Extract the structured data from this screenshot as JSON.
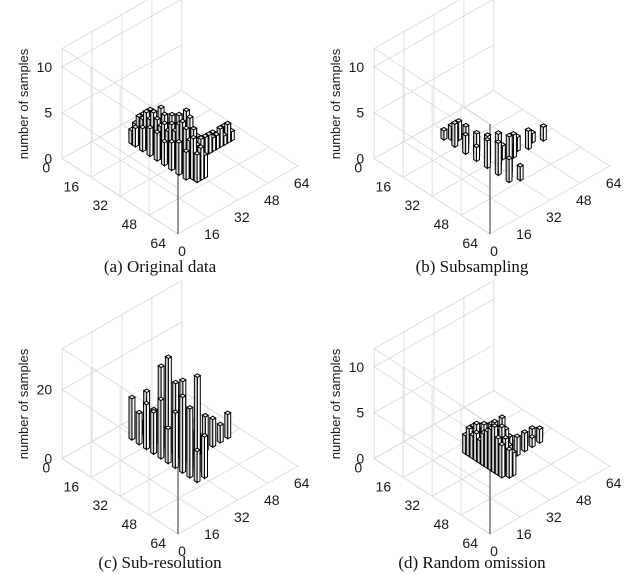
{
  "figure": {
    "style": {
      "bar_front": "#ffffff",
      "bar_side": "#d0d0d0",
      "bar_top": "#f2f2f2",
      "edge": "#000000",
      "grid": "#d9d9d9"
    }
  },
  "chart_data": [
    {
      "type": "bar3d",
      "caption": "(a) Original data",
      "zlabel": "number of samples",
      "zlim": [
        0,
        12
      ],
      "zticks": [
        0,
        5,
        10
      ],
      "x_ticks": [
        0,
        16,
        32,
        48,
        64
      ],
      "y_ticks": [
        0,
        16,
        32,
        48,
        64
      ],
      "grid": true,
      "bars": [
        {
          "x": 28,
          "y": 8,
          "v": 0.5
        },
        {
          "x": 30,
          "y": 8,
          "v": 1.0
        },
        {
          "x": 32,
          "y": 8,
          "v": 1.5
        },
        {
          "x": 26,
          "y": 10,
          "v": 1.5
        },
        {
          "x": 28,
          "y": 10,
          "v": 2.0
        },
        {
          "x": 30,
          "y": 10,
          "v": 1.5
        },
        {
          "x": 32,
          "y": 10,
          "v": 2.5
        },
        {
          "x": 26,
          "y": 12,
          "v": 2.0
        },
        {
          "x": 28,
          "y": 12,
          "v": 3.0
        },
        {
          "x": 30,
          "y": 12,
          "v": 2.5
        },
        {
          "x": 32,
          "y": 12,
          "v": 2.0
        },
        {
          "x": 28,
          "y": 14,
          "v": 3.0
        },
        {
          "x": 30,
          "y": 14,
          "v": 2.0
        },
        {
          "x": 32,
          "y": 14,
          "v": 3.5
        },
        {
          "x": 26,
          "y": 16,
          "v": 2.5
        },
        {
          "x": 28,
          "y": 16,
          "v": 4.0
        },
        {
          "x": 30,
          "y": 16,
          "v": 3.0
        },
        {
          "x": 32,
          "y": 16,
          "v": 2.5
        },
        {
          "x": 28,
          "y": 18,
          "v": 3.5
        },
        {
          "x": 30,
          "y": 18,
          "v": 4.0
        },
        {
          "x": 32,
          "y": 18,
          "v": 2.5
        },
        {
          "x": 26,
          "y": 20,
          "v": 3.0
        },
        {
          "x": 28,
          "y": 20,
          "v": 4.5
        },
        {
          "x": 30,
          "y": 20,
          "v": 3.5
        },
        {
          "x": 32,
          "y": 20,
          "v": 2.0
        },
        {
          "x": 28,
          "y": 22,
          "v": 4.0
        },
        {
          "x": 30,
          "y": 22,
          "v": 5.0
        },
        {
          "x": 32,
          "y": 22,
          "v": 3.5
        },
        {
          "x": 26,
          "y": 24,
          "v": 3.0
        },
        {
          "x": 28,
          "y": 24,
          "v": 3.5
        },
        {
          "x": 30,
          "y": 24,
          "v": 4.5
        },
        {
          "x": 32,
          "y": 24,
          "v": 3.0
        },
        {
          "x": 28,
          "y": 26,
          "v": 4.0
        },
        {
          "x": 30,
          "y": 26,
          "v": 3.0
        },
        {
          "x": 32,
          "y": 26,
          "v": 4.5
        },
        {
          "x": 26,
          "y": 28,
          "v": 2.5
        },
        {
          "x": 28,
          "y": 28,
          "v": 3.5
        },
        {
          "x": 30,
          "y": 28,
          "v": 4.0
        },
        {
          "x": 32,
          "y": 28,
          "v": 3.0
        },
        {
          "x": 28,
          "y": 30,
          "v": 4.5
        },
        {
          "x": 30,
          "y": 30,
          "v": 3.5
        },
        {
          "x": 32,
          "y": 30,
          "v": 5.0
        },
        {
          "x": 26,
          "y": 32,
          "v": 3.0
        },
        {
          "x": 28,
          "y": 32,
          "v": 4.0
        },
        {
          "x": 30,
          "y": 32,
          "v": 5.5
        },
        {
          "x": 32,
          "y": 32,
          "v": 4.0
        },
        {
          "x": 28,
          "y": 34,
          "v": 5.0
        },
        {
          "x": 30,
          "y": 34,
          "v": 4.0
        },
        {
          "x": 32,
          "y": 34,
          "v": 6.0
        },
        {
          "x": 26,
          "y": 36,
          "v": 3.5
        },
        {
          "x": 28,
          "y": 36,
          "v": 5.5
        },
        {
          "x": 30,
          "y": 36,
          "v": 4.5
        },
        {
          "x": 32,
          "y": 36,
          "v": 5.0
        },
        {
          "x": 28,
          "y": 38,
          "v": 5.0
        },
        {
          "x": 30,
          "y": 38,
          "v": 6.0
        },
        {
          "x": 32,
          "y": 38,
          "v": 4.5
        },
        {
          "x": 26,
          "y": 40,
          "v": 3.0
        },
        {
          "x": 28,
          "y": 40,
          "v": 4.0
        },
        {
          "x": 30,
          "y": 40,
          "v": 5.0
        },
        {
          "x": 32,
          "y": 40,
          "v": 3.5
        },
        {
          "x": 28,
          "y": 42,
          "v": 4.5
        },
        {
          "x": 30,
          "y": 42,
          "v": 3.5
        },
        {
          "x": 32,
          "y": 42,
          "v": 4.0
        },
        {
          "x": 28,
          "y": 44,
          "v": 3.0
        },
        {
          "x": 30,
          "y": 44,
          "v": 3.5
        },
        {
          "x": 32,
          "y": 44,
          "v": 2.5
        },
        {
          "x": 34,
          "y": 32,
          "v": 1.0
        },
        {
          "x": 36,
          "y": 32,
          "v": 1.5
        },
        {
          "x": 38,
          "y": 32,
          "v": 2.0
        },
        {
          "x": 40,
          "y": 32,
          "v": 1.0
        },
        {
          "x": 34,
          "y": 34,
          "v": 1.5
        },
        {
          "x": 36,
          "y": 34,
          "v": 2.0
        },
        {
          "x": 38,
          "y": 34,
          "v": 2.5
        },
        {
          "x": 40,
          "y": 34,
          "v": 2.0
        },
        {
          "x": 42,
          "y": 32,
          "v": 1.5
        },
        {
          "x": 42,
          "y": 34,
          "v": 2.0
        },
        {
          "x": 44,
          "y": 32,
          "v": 1.5
        },
        {
          "x": 44,
          "y": 34,
          "v": 2.0
        },
        {
          "x": 46,
          "y": 32,
          "v": 1.0
        },
        {
          "x": 46,
          "y": 34,
          "v": 1.5
        },
        {
          "x": 48,
          "y": 32,
          "v": 1.5
        },
        {
          "x": 48,
          "y": 34,
          "v": 1.5
        },
        {
          "x": 50,
          "y": 32,
          "v": 1.0
        },
        {
          "x": 50,
          "y": 34,
          "v": 2.0
        },
        {
          "x": 52,
          "y": 32,
          "v": 1.5
        },
        {
          "x": 52,
          "y": 34,
          "v": 1.0
        },
        {
          "x": 54,
          "y": 32,
          "v": 1.5
        },
        {
          "x": 54,
          "y": 34,
          "v": 2.0
        },
        {
          "x": 56,
          "y": 34,
          "v": 1.0
        },
        {
          "x": 56,
          "y": 32,
          "v": 1.5
        }
      ]
    },
    {
      "type": "bar3d",
      "caption": "(b) Subsampling",
      "zlabel": "number of samples",
      "zlim": [
        0,
        12
      ],
      "zticks": [
        0,
        5,
        10
      ],
      "x_ticks": [
        0,
        16,
        32,
        48,
        64
      ],
      "y_ticks": [
        0,
        16,
        32,
        48,
        64
      ],
      "grid": true,
      "bars": [
        {
          "x": 28,
          "y": 8,
          "v": 1.0
        },
        {
          "x": 30,
          "y": 10,
          "v": 1.5
        },
        {
          "x": 32,
          "y": 12,
          "v": 2.0
        },
        {
          "x": 28,
          "y": 14,
          "v": 2.5
        },
        {
          "x": 32,
          "y": 16,
          "v": 2.0
        },
        {
          "x": 30,
          "y": 18,
          "v": 1.5
        },
        {
          "x": 28,
          "y": 20,
          "v": 2.0
        },
        {
          "x": 32,
          "y": 22,
          "v": 1.5
        },
        {
          "x": 30,
          "y": 24,
          "v": 2.5
        },
        {
          "x": 28,
          "y": 26,
          "v": 1.5
        },
        {
          "x": 32,
          "y": 28,
          "v": 2.5
        },
        {
          "x": 30,
          "y": 30,
          "v": 3.0
        },
        {
          "x": 28,
          "y": 32,
          "v": 3.0
        },
        {
          "x": 32,
          "y": 34,
          "v": 3.5
        },
        {
          "x": 30,
          "y": 36,
          "v": 4.0
        },
        {
          "x": 28,
          "y": 38,
          "v": 3.5
        },
        {
          "x": 32,
          "y": 40,
          "v": 3.0
        },
        {
          "x": 30,
          "y": 42,
          "v": 4.5
        },
        {
          "x": 28,
          "y": 44,
          "v": 2.5
        },
        {
          "x": 32,
          "y": 46,
          "v": 1.5
        },
        {
          "x": 36,
          "y": 32,
          "v": 1.5
        },
        {
          "x": 40,
          "y": 34,
          "v": 2.5
        },
        {
          "x": 44,
          "y": 32,
          "v": 1.5
        },
        {
          "x": 48,
          "y": 34,
          "v": 2.0
        },
        {
          "x": 52,
          "y": 32,
          "v": 1.0
        },
        {
          "x": 56,
          "y": 34,
          "v": 1.5
        }
      ]
    },
    {
      "type": "bar3d",
      "caption": "(c) Sub-resolution",
      "zlabel": "number of samples",
      "zlim": [
        0,
        32
      ],
      "zticks": [
        0,
        20
      ],
      "x_ticks": [
        0,
        16,
        32,
        48,
        64
      ],
      "y_ticks": [
        0,
        16,
        32,
        48,
        64
      ],
      "grid": true,
      "bars": [
        {
          "x": 28,
          "y": 8,
          "v": 12
        },
        {
          "x": 32,
          "y": 8,
          "v": 4
        },
        {
          "x": 28,
          "y": 12,
          "v": 9
        },
        {
          "x": 32,
          "y": 12,
          "v": 14
        },
        {
          "x": 28,
          "y": 16,
          "v": 13
        },
        {
          "x": 32,
          "y": 16,
          "v": 10
        },
        {
          "x": 28,
          "y": 20,
          "v": 12
        },
        {
          "x": 32,
          "y": 20,
          "v": 24
        },
        {
          "x": 28,
          "y": 24,
          "v": 17
        },
        {
          "x": 32,
          "y": 24,
          "v": 28
        },
        {
          "x": 28,
          "y": 28,
          "v": 10
        },
        {
          "x": 32,
          "y": 28,
          "v": 22
        },
        {
          "x": 28,
          "y": 32,
          "v": 16
        },
        {
          "x": 32,
          "y": 32,
          "v": 24
        },
        {
          "x": 28,
          "y": 36,
          "v": 22
        },
        {
          "x": 32,
          "y": 36,
          "v": 14
        },
        {
          "x": 28,
          "y": 40,
          "v": 20
        },
        {
          "x": 32,
          "y": 40,
          "v": 28
        },
        {
          "x": 28,
          "y": 44,
          "v": 9
        },
        {
          "x": 32,
          "y": 44,
          "v": 12
        },
        {
          "x": 36,
          "y": 32,
          "v": 8
        },
        {
          "x": 40,
          "y": 32,
          "v": 6
        },
        {
          "x": 44,
          "y": 32,
          "v": 10
        },
        {
          "x": 48,
          "y": 32,
          "v": 8
        },
        {
          "x": 52,
          "y": 32,
          "v": 5
        },
        {
          "x": 56,
          "y": 32,
          "v": 7
        }
      ]
    },
    {
      "type": "bar3d",
      "caption": "(d) Random omission",
      "zlabel": "number of samples",
      "zlim": [
        0,
        12
      ],
      "zticks": [
        0,
        5,
        10
      ],
      "x_ticks": [
        0,
        16,
        32,
        48,
        64
      ],
      "y_ticks": [
        0,
        16,
        32,
        48,
        64
      ],
      "grid": true,
      "bars": [
        {
          "x": 28,
          "y": 20,
          "v": 2.0
        },
        {
          "x": 30,
          "y": 20,
          "v": 1.5
        },
        {
          "x": 32,
          "y": 20,
          "v": 2.5
        },
        {
          "x": 28,
          "y": 22,
          "v": 3.0
        },
        {
          "x": 30,
          "y": 22,
          "v": 2.5
        },
        {
          "x": 32,
          "y": 22,
          "v": 2.0
        },
        {
          "x": 28,
          "y": 24,
          "v": 2.5
        },
        {
          "x": 30,
          "y": 24,
          "v": 3.5
        },
        {
          "x": 32,
          "y": 24,
          "v": 3.0
        },
        {
          "x": 28,
          "y": 26,
          "v": 3.0
        },
        {
          "x": 30,
          "y": 26,
          "v": 2.5
        },
        {
          "x": 32,
          "y": 26,
          "v": 3.5
        },
        {
          "x": 28,
          "y": 28,
          "v": 2.5
        },
        {
          "x": 30,
          "y": 28,
          "v": 3.0
        },
        {
          "x": 32,
          "y": 28,
          "v": 2.5
        },
        {
          "x": 28,
          "y": 30,
          "v": 3.5
        },
        {
          "x": 30,
          "y": 30,
          "v": 3.0
        },
        {
          "x": 32,
          "y": 30,
          "v": 4.0
        },
        {
          "x": 28,
          "y": 32,
          "v": 4.0
        },
        {
          "x": 30,
          "y": 32,
          "v": 4.5
        },
        {
          "x": 32,
          "y": 32,
          "v": 3.5
        },
        {
          "x": 28,
          "y": 34,
          "v": 4.5
        },
        {
          "x": 30,
          "y": 34,
          "v": 5.0
        },
        {
          "x": 32,
          "y": 34,
          "v": 4.0
        },
        {
          "x": 28,
          "y": 36,
          "v": 5.0
        },
        {
          "x": 30,
          "y": 36,
          "v": 4.5
        },
        {
          "x": 32,
          "y": 36,
          "v": 5.5
        },
        {
          "x": 28,
          "y": 38,
          "v": 4.0
        },
        {
          "x": 30,
          "y": 38,
          "v": 5.0
        },
        {
          "x": 32,
          "y": 38,
          "v": 4.5
        },
        {
          "x": 28,
          "y": 40,
          "v": 3.5
        },
        {
          "x": 30,
          "y": 40,
          "v": 4.0
        },
        {
          "x": 32,
          "y": 40,
          "v": 3.0
        },
        {
          "x": 30,
          "y": 42,
          "v": 3.0
        },
        {
          "x": 32,
          "y": 42,
          "v": 2.5
        },
        {
          "x": 34,
          "y": 32,
          "v": 1.5
        },
        {
          "x": 36,
          "y": 32,
          "v": 2.0
        },
        {
          "x": 38,
          "y": 34,
          "v": 2.5
        },
        {
          "x": 40,
          "y": 32,
          "v": 1.5
        },
        {
          "x": 42,
          "y": 34,
          "v": 2.0
        },
        {
          "x": 44,
          "y": 32,
          "v": 1.5
        },
        {
          "x": 46,
          "y": 34,
          "v": 2.0
        },
        {
          "x": 48,
          "y": 32,
          "v": 1.5
        },
        {
          "x": 50,
          "y": 34,
          "v": 1.0
        },
        {
          "x": 52,
          "y": 32,
          "v": 1.5
        },
        {
          "x": 54,
          "y": 34,
          "v": 1.5
        },
        {
          "x": 56,
          "y": 32,
          "v": 1.0
        }
      ]
    }
  ]
}
